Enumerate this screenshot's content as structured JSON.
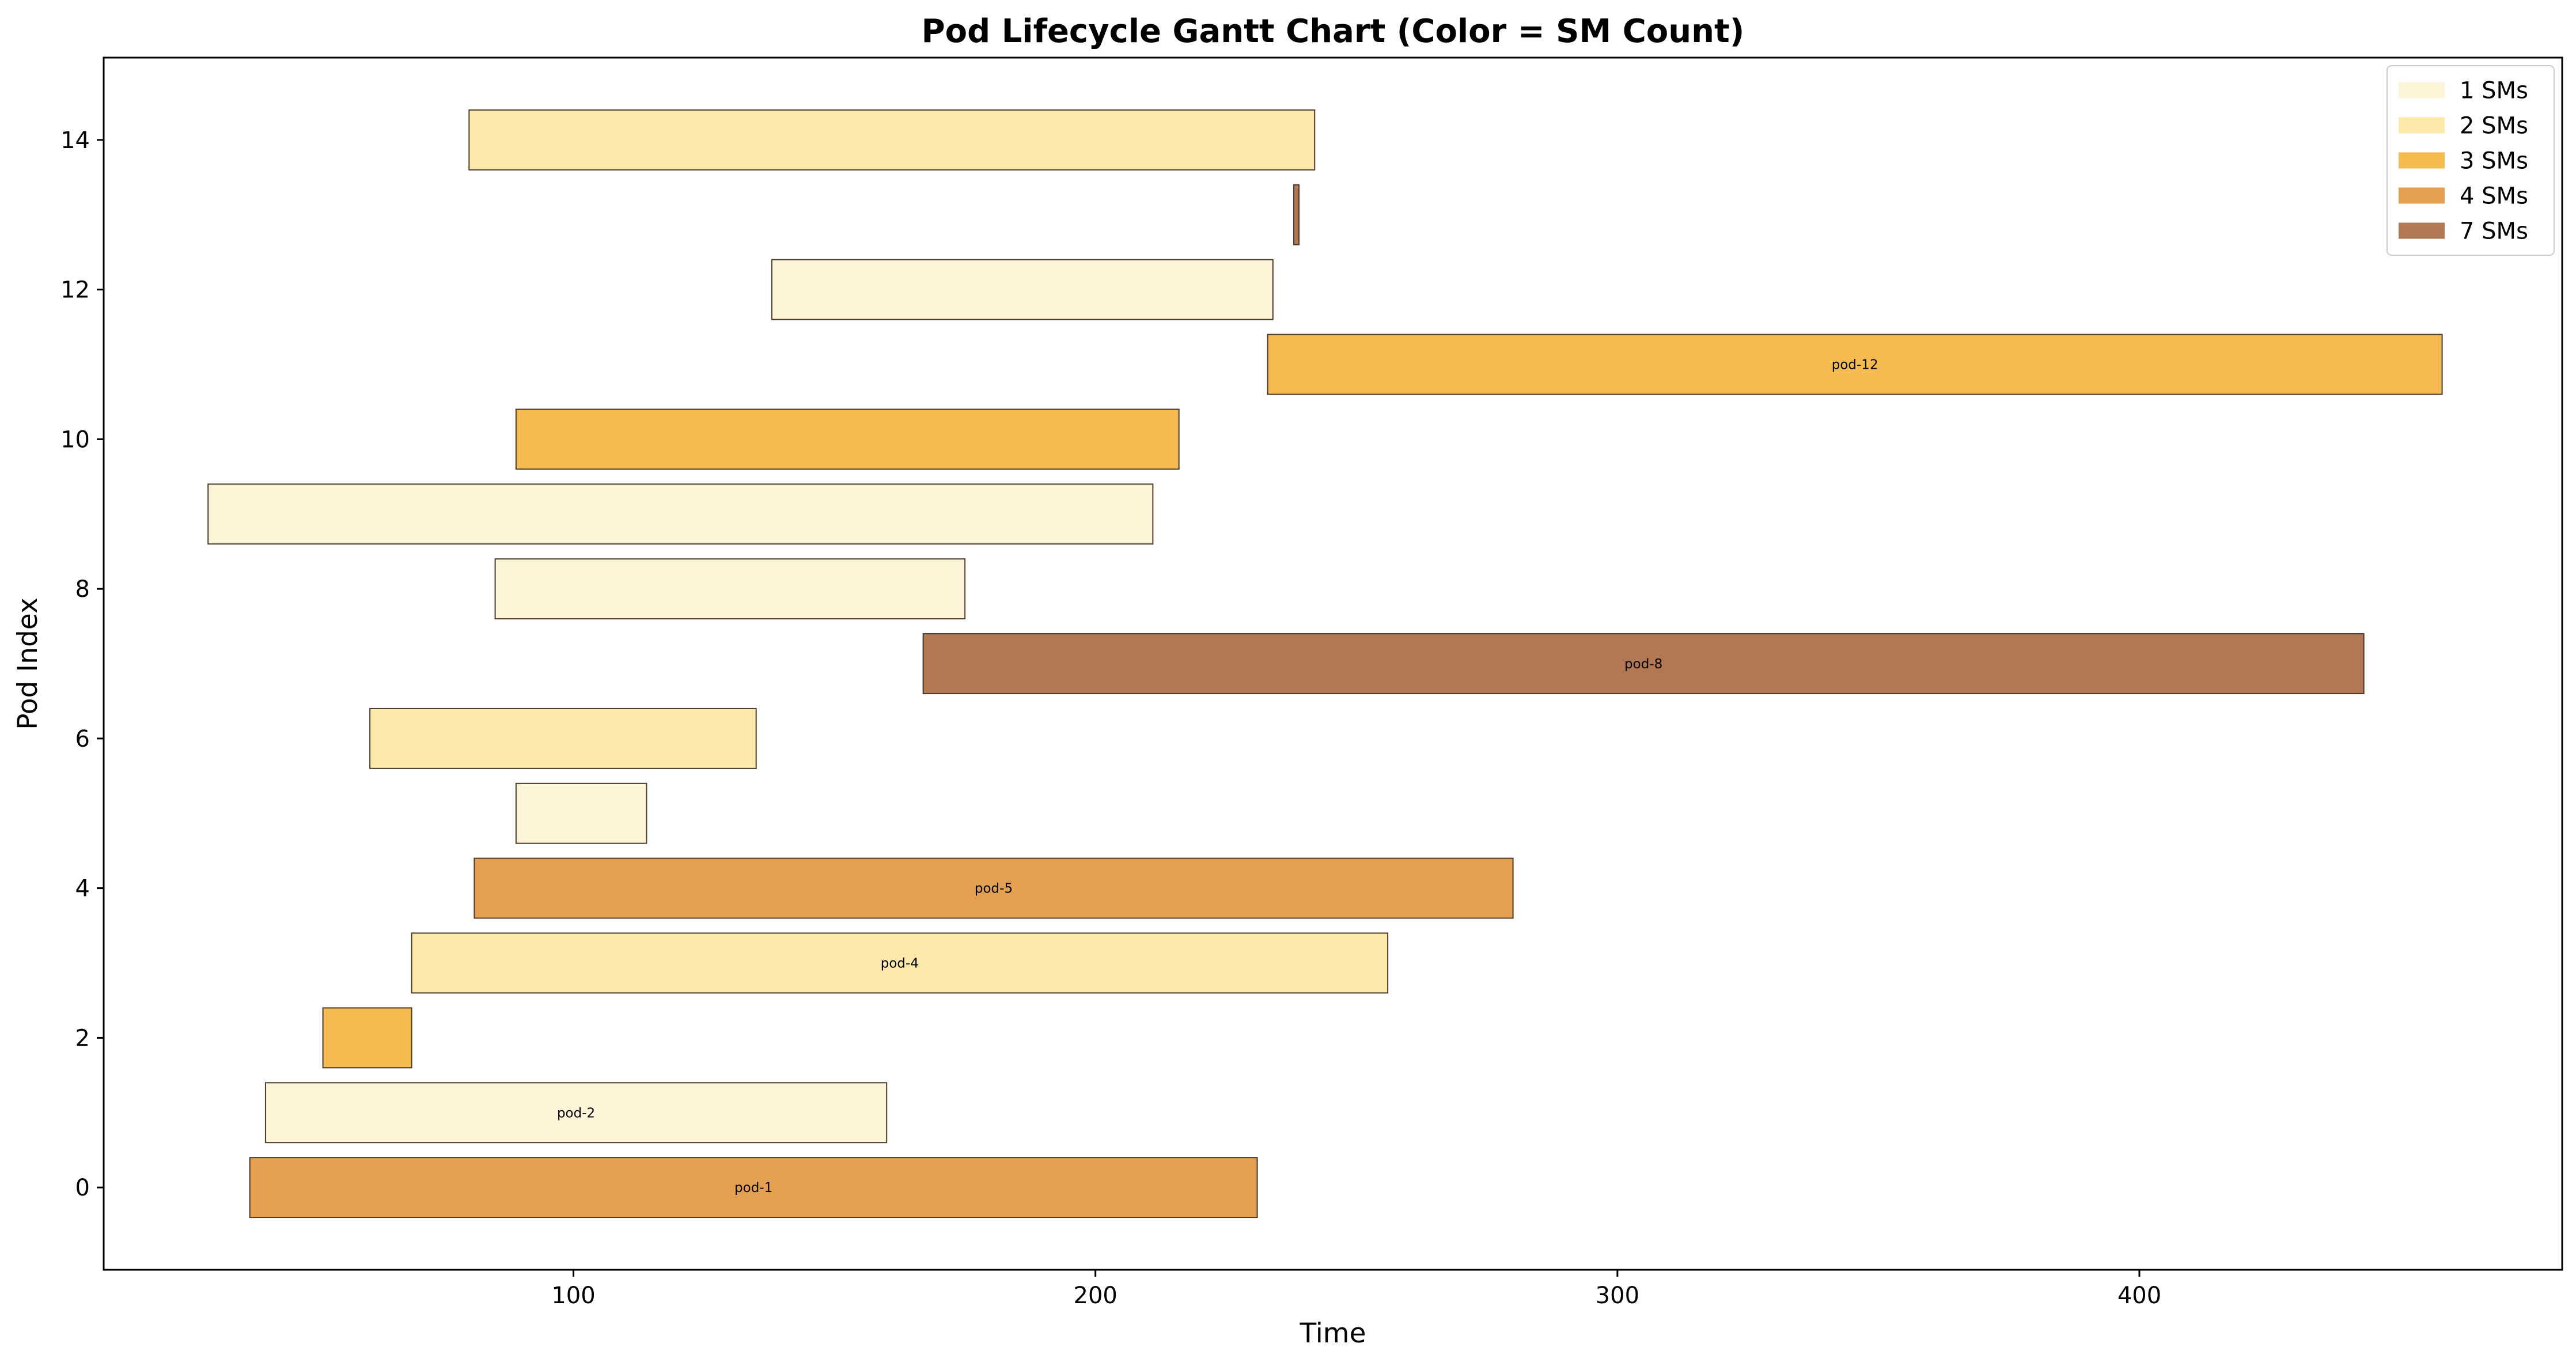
{
  "chart_data": {
    "type": "gantt",
    "title": "Pod Lifecycle Gantt Chart (Color = SM Count)",
    "xlabel": "Time",
    "ylabel": "Pod Index",
    "xlim": [
      10,
      481
    ],
    "ylim": [
      -1.1,
      15.1
    ],
    "xticks": [
      100,
      200,
      300,
      400
    ],
    "yticks": [
      0,
      2,
      4,
      6,
      8,
      10,
      12,
      14
    ],
    "legend": {
      "placement": "top-right",
      "entries": [
        {
          "label": "1 SMs",
          "sm": 1,
          "color": "#fef4d8"
        },
        {
          "label": "2 SMs",
          "sm": 2,
          "color": "#fdeaaa"
        },
        {
          "label": "3 SMs",
          "sm": 3,
          "color": "#f6bb50"
        },
        {
          "label": "4 SMs",
          "sm": 4,
          "color": "#e4a050"
        },
        {
          "label": "7 SMs",
          "sm": 7,
          "color": "#b27854"
        }
      ]
    },
    "tasks": [
      {
        "index": 0,
        "start": 38,
        "end": 231,
        "sm": 4,
        "label": "pod-1"
      },
      {
        "index": 1,
        "start": 41,
        "end": 160,
        "sm": 1,
        "label": "pod-2"
      },
      {
        "index": 2,
        "start": 52,
        "end": 69,
        "sm": 3,
        "label": ""
      },
      {
        "index": 3,
        "start": 69,
        "end": 256,
        "sm": 2,
        "label": "pod-4"
      },
      {
        "index": 4,
        "start": 81,
        "end": 280,
        "sm": 4,
        "label": "pod-5"
      },
      {
        "index": 5,
        "start": 89,
        "end": 114,
        "sm": 1,
        "label": ""
      },
      {
        "index": 6,
        "start": 61,
        "end": 135,
        "sm": 2,
        "label": ""
      },
      {
        "index": 7,
        "start": 167,
        "end": 443,
        "sm": 7,
        "label": "pod-8"
      },
      {
        "index": 8,
        "start": 85,
        "end": 175,
        "sm": 1,
        "label": ""
      },
      {
        "index": 9,
        "start": 30,
        "end": 211,
        "sm": 1,
        "label": ""
      },
      {
        "index": 10,
        "start": 89,
        "end": 216,
        "sm": 3,
        "label": ""
      },
      {
        "index": 11,
        "start": 233,
        "end": 458,
        "sm": 3,
        "label": "pod-12"
      },
      {
        "index": 12,
        "start": 138,
        "end": 234,
        "sm": 1,
        "label": ""
      },
      {
        "index": 13,
        "start": 238,
        "end": 239,
        "sm": 7,
        "label": ""
      },
      {
        "index": 14,
        "start": 80,
        "end": 242,
        "sm": 2,
        "label": ""
      }
    ]
  }
}
